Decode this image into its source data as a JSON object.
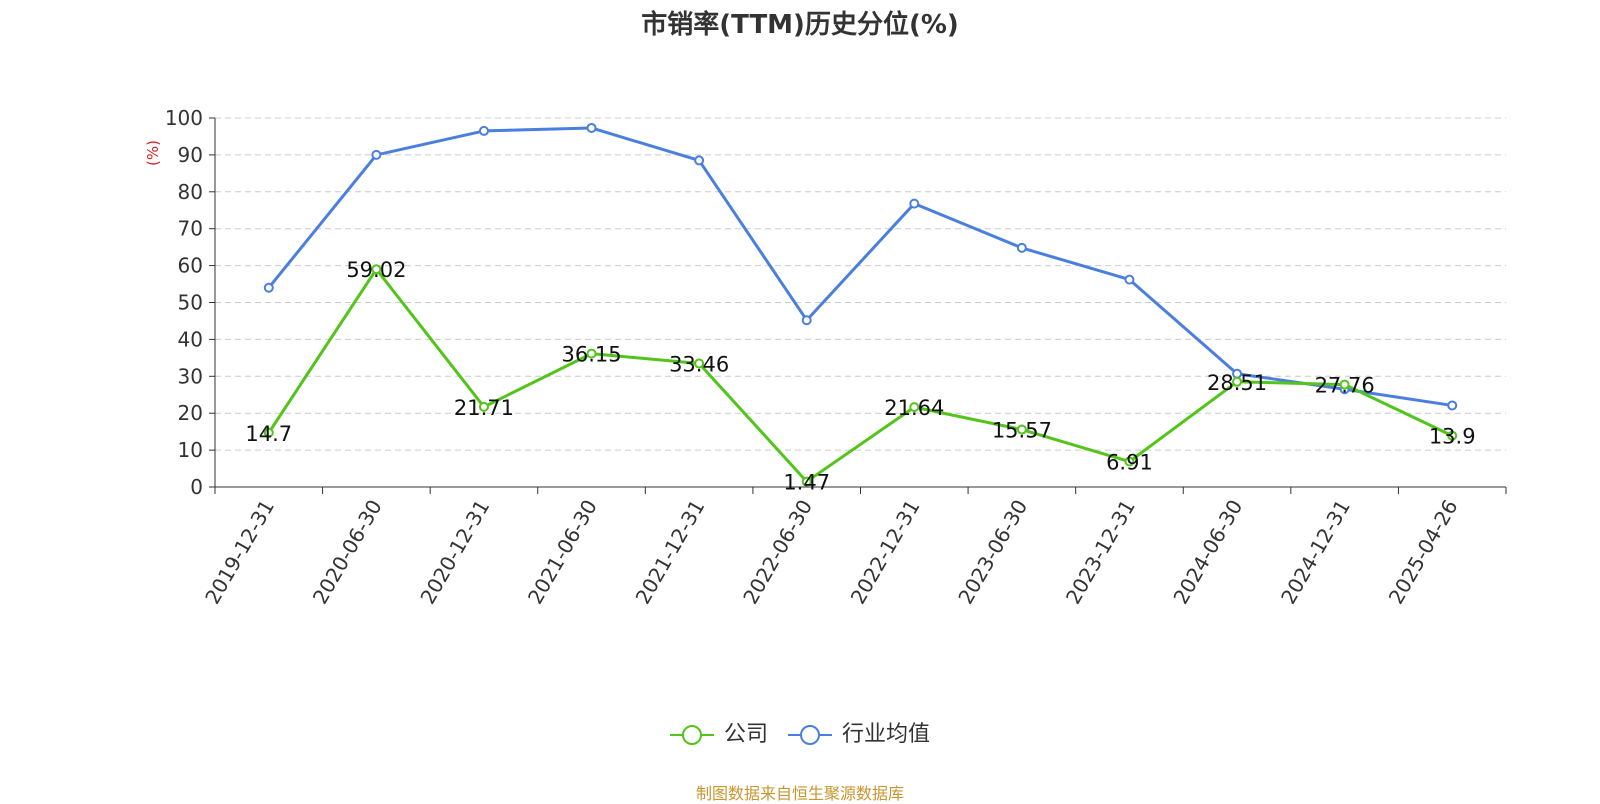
{
  "title": "市销率(TTM)历史分位(%)",
  "source_note": "制图数据来自恒生聚源数据库",
  "colors": {
    "company": "#52c41a",
    "industry": "#4a7fe0",
    "source_note": "#c8962e",
    "ylabel": "#e02020"
  },
  "legend": {
    "company_label": "公司",
    "industry_label": "行业均值"
  },
  "chart_data": {
    "type": "line",
    "title": "市销率(TTM)历史分位(%)",
    "ylabel": "(%)",
    "xlabel": "",
    "ylim": [
      0,
      100
    ],
    "yticks": [
      0,
      10,
      20,
      30,
      40,
      50,
      60,
      70,
      80,
      90,
      100
    ],
    "grid": true,
    "legend_position": "bottom",
    "categories": [
      "2019-12-31",
      "2020-06-30",
      "2020-12-31",
      "2021-06-30",
      "2021-12-31",
      "2022-06-30",
      "2022-12-31",
      "2023-06-30",
      "2023-12-31",
      "2024-06-30",
      "2024-12-31",
      "2025-04-26"
    ],
    "series": [
      {
        "name": "公司",
        "values": [
          14.7,
          59.02,
          21.71,
          36.15,
          33.46,
          1.47,
          21.64,
          15.57,
          6.91,
          28.51,
          27.76,
          13.9
        ],
        "data_labels": [
          "14.7",
          "59.02",
          "21.71",
          "36.15",
          "33.46",
          "1.47",
          "21.64",
          "15.57",
          "6.91",
          "28.51",
          "27.76",
          "13.9"
        ]
      },
      {
        "name": "行业均值",
        "values": [
          54,
          90,
          96.5,
          97.3,
          88.5,
          45.2,
          76.8,
          64.8,
          56.2,
          30.7,
          26.5,
          22.1
        ]
      }
    ]
  }
}
